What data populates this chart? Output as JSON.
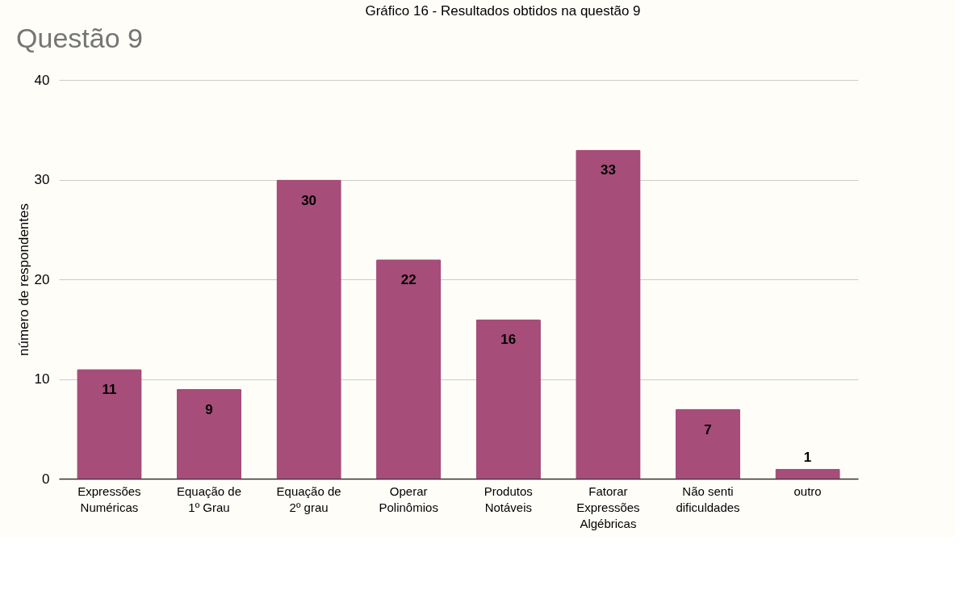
{
  "chart_data": {
    "type": "bar",
    "title": "Questão 9",
    "annotations": [
      "Gráfico 16 - Resultados obtidos na questão 9"
    ],
    "ylabel": "número de respondentes",
    "categories": [
      "Expressões\nNuméricas",
      "Equação de\n1º Grau",
      "Equação de\n2º grau",
      "Operar\nPolinômios",
      "Produtos\nNotáveis",
      "Fatorar\nExpressões\nAlgébricas",
      "Não senti\ndificuldades",
      "outro"
    ],
    "series": [
      {
        "color": "#a64d79",
        "values": [
          11,
          9,
          30,
          22,
          16,
          33,
          7,
          1
        ]
      }
    ],
    "ylim": [
      0,
      40
    ],
    "yticks": [
      0,
      10,
      20,
      30,
      40
    ],
    "grid": "y",
    "data_labels": true
  }
}
